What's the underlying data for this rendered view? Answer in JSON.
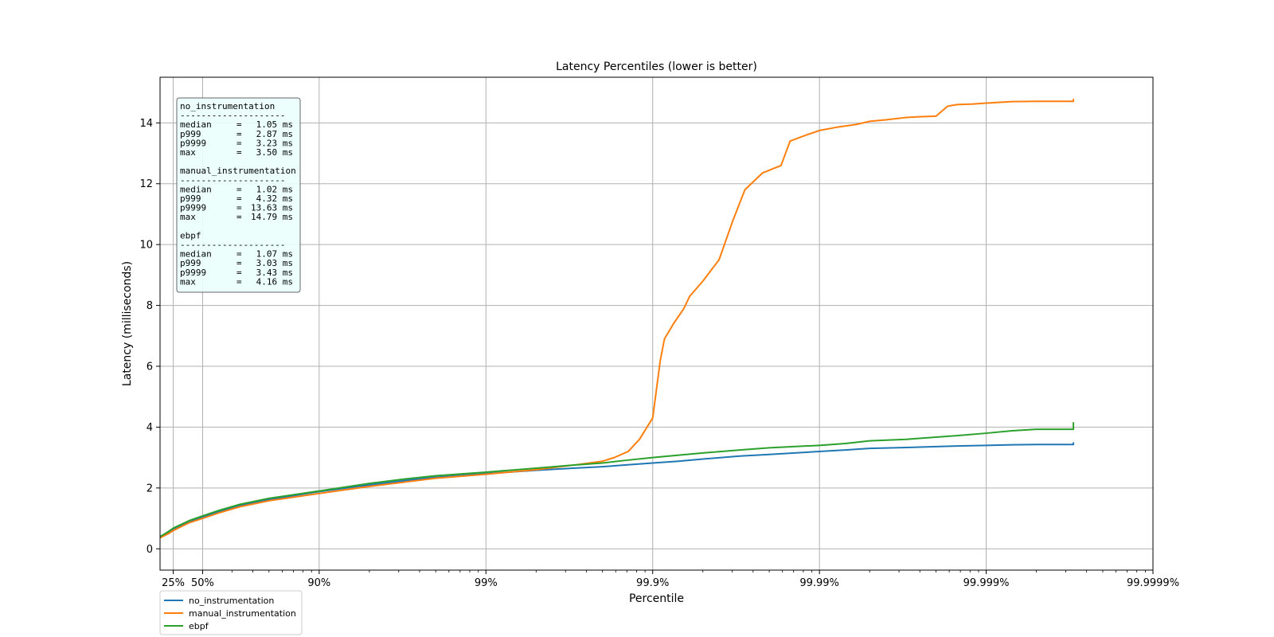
{
  "chart_data": {
    "type": "line",
    "title": "Latency Percentiles (lower is better)",
    "xlabel": "Percentile",
    "ylabel": "Latency (milliseconds)",
    "x_scale": "log(1/(1-p))",
    "xlim_percentile": [
      10,
      99.9999
    ],
    "ylim": [
      -0.7,
      15.5
    ],
    "grid": true,
    "legend_location": "below-left",
    "x_ticks": [
      {
        "p": 25,
        "label": "25%"
      },
      {
        "p": 50,
        "label": "50%"
      },
      {
        "p": 90,
        "label": "90%"
      },
      {
        "p": 99,
        "label": "99%"
      },
      {
        "p": 99.9,
        "label": "99.9%"
      },
      {
        "p": 99.99,
        "label": "99.99%"
      },
      {
        "p": 99.999,
        "label": "99.999%"
      },
      {
        "p": 99.9999,
        "label": "99.9999%"
      }
    ],
    "y_ticks": [
      0,
      2,
      4,
      6,
      8,
      10,
      12,
      14
    ],
    "series": [
      {
        "name": "no_instrumentation",
        "color": "#1f77b4",
        "points": [
          [
            10,
            0.38
          ],
          [
            20,
            0.55
          ],
          [
            25,
            0.65
          ],
          [
            40,
            0.9
          ],
          [
            50,
            1.05
          ],
          [
            60,
            1.22
          ],
          [
            70,
            1.42
          ],
          [
            80,
            1.62
          ],
          [
            90,
            1.88
          ],
          [
            95,
            2.1
          ],
          [
            97,
            2.25
          ],
          [
            98,
            2.35
          ],
          [
            99,
            2.47
          ],
          [
            99.5,
            2.58
          ],
          [
            99.7,
            2.65
          ],
          [
            99.8,
            2.7
          ],
          [
            99.85,
            2.75
          ],
          [
            99.9,
            2.82
          ],
          [
            99.93,
            2.88
          ],
          [
            99.95,
            2.95
          ],
          [
            99.97,
            3.05
          ],
          [
            99.98,
            3.1
          ],
          [
            99.99,
            3.2
          ],
          [
            99.993,
            3.25
          ],
          [
            99.995,
            3.3
          ],
          [
            99.997,
            3.33
          ],
          [
            99.998,
            3.36
          ],
          [
            99.9985,
            3.38
          ],
          [
            99.999,
            3.4
          ],
          [
            99.9993,
            3.42
          ],
          [
            99.9995,
            3.43
          ],
          [
            99.9997,
            3.43
          ],
          [
            99.9997,
            3.5
          ]
        ]
      },
      {
        "name": "manual_instrumentation",
        "color": "#ff7f0e",
        "points": [
          [
            10,
            0.36
          ],
          [
            20,
            0.5
          ],
          [
            25,
            0.6
          ],
          [
            40,
            0.86
          ],
          [
            50,
            1.0
          ],
          [
            60,
            1.18
          ],
          [
            70,
            1.38
          ],
          [
            80,
            1.58
          ],
          [
            90,
            1.82
          ],
          [
            95,
            2.05
          ],
          [
            97,
            2.2
          ],
          [
            98,
            2.32
          ],
          [
            99,
            2.45
          ],
          [
            99.5,
            2.6
          ],
          [
            99.7,
            2.75
          ],
          [
            99.8,
            2.88
          ],
          [
            99.83,
            3.0
          ],
          [
            99.86,
            3.2
          ],
          [
            99.88,
            3.6
          ],
          [
            99.9,
            4.3
          ],
          [
            99.91,
            6.2
          ],
          [
            99.915,
            6.9
          ],
          [
            99.925,
            7.4
          ],
          [
            99.935,
            7.9
          ],
          [
            99.94,
            8.3
          ],
          [
            99.95,
            8.8
          ],
          [
            99.96,
            9.5
          ],
          [
            99.967,
            10.8
          ],
          [
            99.972,
            11.8
          ],
          [
            99.978,
            12.35
          ],
          [
            99.983,
            12.6
          ],
          [
            99.985,
            13.4
          ],
          [
            99.988,
            13.6
          ],
          [
            99.99,
            13.75
          ],
          [
            99.992,
            13.85
          ],
          [
            99.994,
            13.95
          ],
          [
            99.995,
            14.05
          ],
          [
            99.996,
            14.1
          ],
          [
            99.997,
            14.18
          ],
          [
            99.9975,
            14.2
          ],
          [
            99.998,
            14.22
          ],
          [
            99.9983,
            14.55
          ],
          [
            99.9985,
            14.6
          ],
          [
            99.9988,
            14.62
          ],
          [
            99.999,
            14.65
          ],
          [
            99.9993,
            14.7
          ],
          [
            99.9995,
            14.71
          ],
          [
            99.9997,
            14.71
          ],
          [
            99.9997,
            14.79
          ]
        ]
      },
      {
        "name": "ebpf",
        "color": "#2ca02c",
        "points": [
          [
            10,
            0.4
          ],
          [
            20,
            0.57
          ],
          [
            25,
            0.68
          ],
          [
            40,
            0.93
          ],
          [
            50,
            1.08
          ],
          [
            60,
            1.26
          ],
          [
            70,
            1.46
          ],
          [
            80,
            1.66
          ],
          [
            90,
            1.9
          ],
          [
            95,
            2.15
          ],
          [
            97,
            2.3
          ],
          [
            98,
            2.4
          ],
          [
            99,
            2.52
          ],
          [
            99.5,
            2.65
          ],
          [
            99.7,
            2.75
          ],
          [
            99.8,
            2.82
          ],
          [
            99.85,
            2.9
          ],
          [
            99.9,
            3.0
          ],
          [
            99.93,
            3.08
          ],
          [
            99.95,
            3.15
          ],
          [
            99.97,
            3.25
          ],
          [
            99.98,
            3.32
          ],
          [
            99.99,
            3.4
          ],
          [
            99.993,
            3.46
          ],
          [
            99.995,
            3.55
          ],
          [
            99.997,
            3.6
          ],
          [
            99.998,
            3.67
          ],
          [
            99.9985,
            3.72
          ],
          [
            99.999,
            3.8
          ],
          [
            99.9993,
            3.88
          ],
          [
            99.9995,
            3.93
          ],
          [
            99.9997,
            3.93
          ],
          [
            99.9997,
            4.16
          ]
        ]
      }
    ],
    "stats_box": {
      "groups": [
        {
          "name": "no_instrumentation",
          "separator": "--------------------",
          "rows": [
            {
              "label": "median",
              "value": "1.05 ms"
            },
            {
              "label": "p999",
              "value": "2.87 ms"
            },
            {
              "label": "p9999",
              "value": "3.23 ms"
            },
            {
              "label": "max",
              "value": "3.50 ms"
            }
          ]
        },
        {
          "name": "manual_instrumentation",
          "separator": "--------------------",
          "rows": [
            {
              "label": "median",
              "value": "1.02 ms"
            },
            {
              "label": "p999",
              "value": "4.32 ms"
            },
            {
              "label": "p9999",
              "value": "13.63 ms"
            },
            {
              "label": "max",
              "value": "14.79 ms"
            }
          ]
        },
        {
          "name": "ebpf",
          "separator": "--------------------",
          "rows": [
            {
              "label": "median",
              "value": "1.07 ms"
            },
            {
              "label": "p999",
              "value": "3.03 ms"
            },
            {
              "label": "p9999",
              "value": "3.43 ms"
            },
            {
              "label": "max",
              "value": "4.16 ms"
            }
          ]
        }
      ]
    }
  }
}
